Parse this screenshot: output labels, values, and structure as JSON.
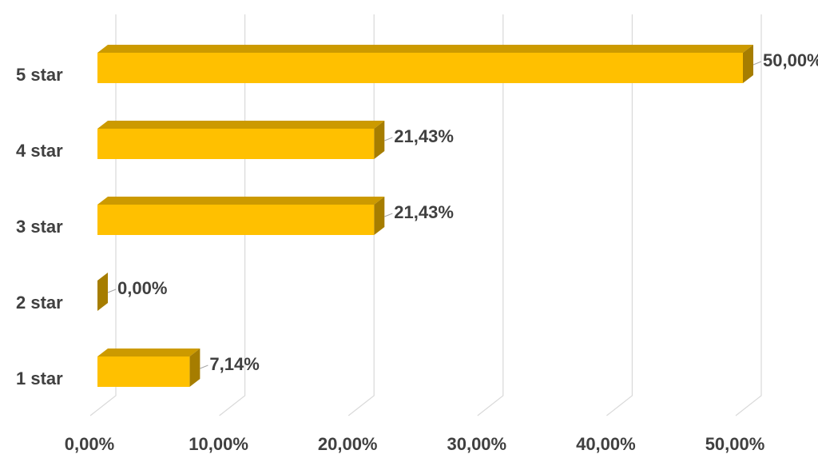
{
  "chart_data": {
    "type": "bar",
    "orientation": "horizontal",
    "categories": [
      "5 star",
      "4 star",
      "3 star",
      "2 star",
      "1 star"
    ],
    "values": [
      50,
      21.43,
      21.43,
      0,
      7.14
    ],
    "value_labels": [
      "50,00%",
      "21,43%",
      "21,43%",
      "0,00%",
      "7,14%"
    ],
    "color": "#ffc000",
    "xlim": [
      0,
      50
    ],
    "xticks": [
      {
        "value": 0,
        "label": "0,00%"
      },
      {
        "value": 10,
        "label": "10,00%"
      },
      {
        "value": 20,
        "label": "20,00%"
      },
      {
        "value": 30,
        "label": "30,00%"
      },
      {
        "value": 40,
        "label": "40,00%"
      },
      {
        "value": 50,
        "label": "50,00%"
      }
    ],
    "grid": true
  }
}
